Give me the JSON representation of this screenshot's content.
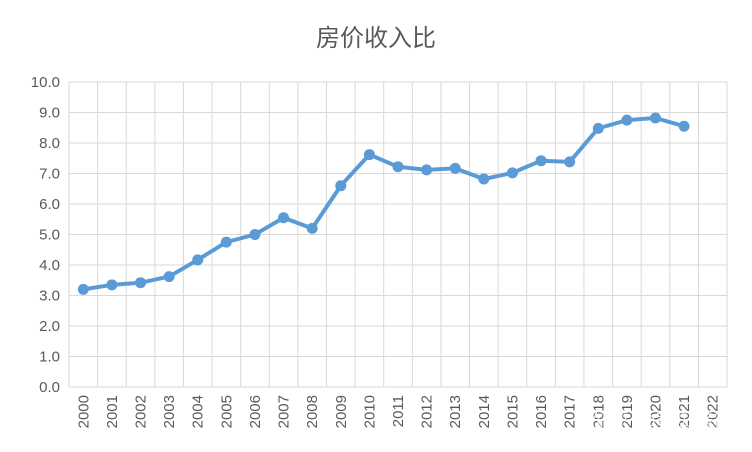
{
  "chart_data": {
    "type": "line",
    "title": "房价收入比",
    "xlabel": "",
    "ylabel": "",
    "categories": [
      "2000",
      "2001",
      "2002",
      "2003",
      "2004",
      "2005",
      "2006",
      "2007",
      "2008",
      "2009",
      "2010",
      "2011",
      "2012",
      "2013",
      "2014",
      "2015",
      "2016",
      "2017",
      "2018",
      "2019",
      "2020",
      "2021",
      "2022"
    ],
    "series": [
      {
        "values": [
          3.2,
          3.35,
          3.42,
          3.62,
          4.17,
          4.75,
          5.0,
          5.55,
          5.2,
          6.6,
          7.62,
          7.22,
          7.12,
          7.17,
          6.82,
          7.02,
          7.42,
          7.38,
          8.48,
          8.75,
          8.82,
          8.55,
          null
        ]
      }
    ],
    "ylim": [
      0,
      10
    ],
    "yticks": [
      "0.0",
      "1.0",
      "2.0",
      "3.0",
      "4.0",
      "5.0",
      "6.0",
      "7.0",
      "8.0",
      "9.0",
      "10.0"
    ],
    "grid": true,
    "legend": "none",
    "colors": {
      "line": "#5b9bd5",
      "grid": "#d9d9d9",
      "text": "#595959"
    }
  },
  "watermark": "知乎 @彭贝盛得"
}
